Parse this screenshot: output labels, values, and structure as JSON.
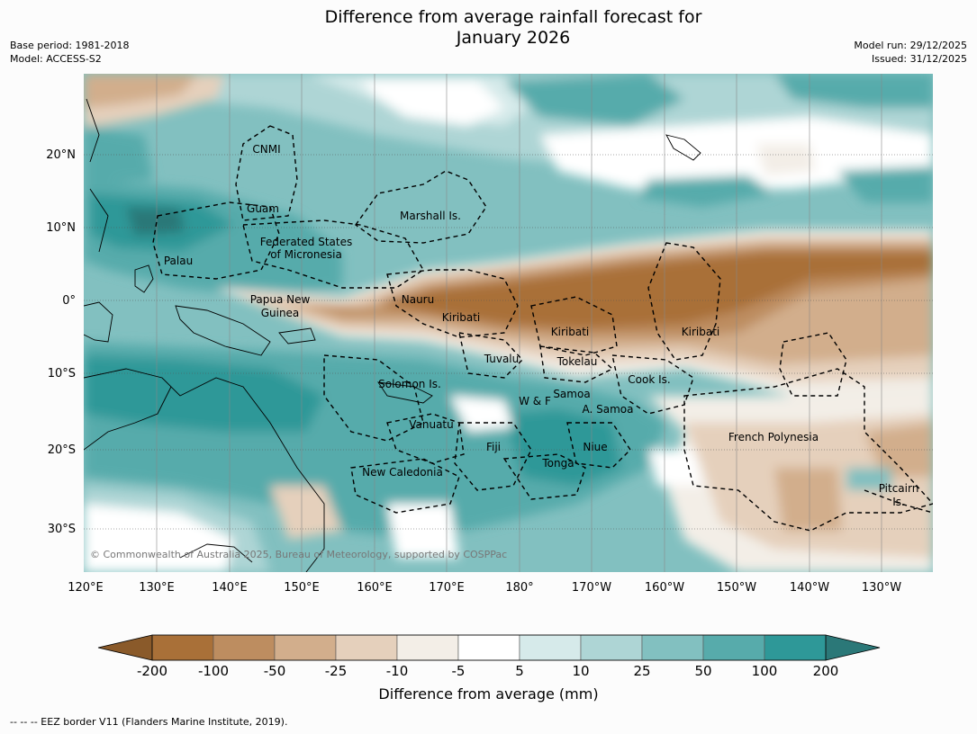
{
  "title": {
    "line1": "Difference from average rainfall forecast for",
    "line2": "January 2026"
  },
  "meta": {
    "base_period": "Base period: 1981-2018",
    "model": "Model: ACCESS-S2",
    "model_run": "Model run: 29/12/2025",
    "issued": "Issued: 31/12/2025"
  },
  "map": {
    "lat_labels": [
      "20°N",
      "10°N",
      "0°",
      "10°S",
      "20°S",
      "30°S"
    ],
    "lon_labels": [
      "120°E",
      "130°E",
      "140°E",
      "150°E",
      "160°E",
      "170°E",
      "180°",
      "170°W",
      "160°W",
      "150°W",
      "140°W",
      "130°W"
    ],
    "regions": [
      "CNMI",
      "Guam",
      "Marshall Is.",
      "Federated States",
      "of Micronesia",
      "Palau",
      "Papua New",
      "Guinea",
      "Nauru",
      "Kiribati",
      "Kiribati",
      "Kiribati",
      "Tuvalu",
      "Tokelau",
      "Cook Is.",
      "Solomon Is.",
      "W & F",
      "Samoa",
      "A. Samoa",
      "Vanuatu",
      "Fiji",
      "Niue",
      "Tonga",
      "French Polynesia",
      "New Caledonia",
      "Pitcairn",
      "Is."
    ],
    "copyright": "© Commonwealth of Australia 2025, Bureau of Meteorology, supported by COSPPac"
  },
  "colorbar": {
    "ticks": [
      "-200",
      "-100",
      "-50",
      "-25",
      "-10",
      "-5",
      "5",
      "10",
      "25",
      "50",
      "100",
      "200"
    ],
    "colors": [
      "#a97038",
      "#bd8d60",
      "#d2ae8c",
      "#e5d0bc",
      "#f3eee7",
      "#ffffff",
      "#d6eaea",
      "#aed5d5",
      "#82c0c0",
      "#57abab",
      "#2e9898"
    ],
    "low_extend_color": "#8a5a2a",
    "high_extend_color": "#2b7878",
    "label": "Difference from average (mm)"
  },
  "footer": "--  --  -- EEZ border V11 (Flanders Marine Institute, 2019)."
}
